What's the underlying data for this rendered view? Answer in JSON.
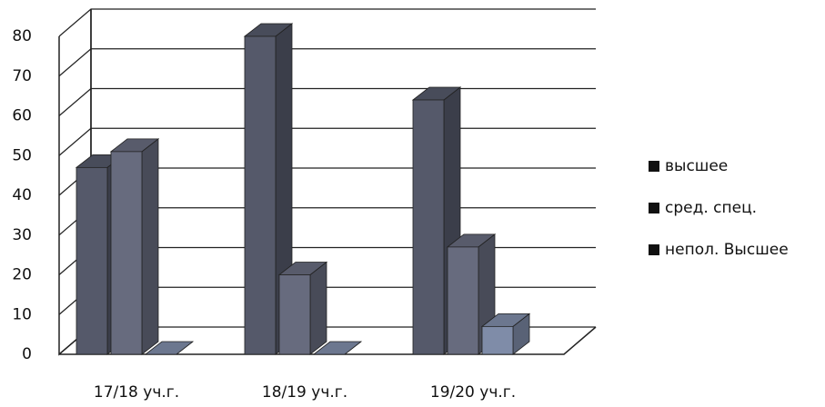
{
  "chart_data": {
    "type": "bar3d",
    "categories": [
      "17/18 уч.г.",
      "18/19 уч.г.",
      "19/20 уч.г."
    ],
    "series": [
      {
        "name": "высшее",
        "color": "#55596a",
        "values": [
          47,
          80,
          64
        ]
      },
      {
        "name": "сред. спец.",
        "color": "#676b7e",
        "values": [
          51,
          20,
          27
        ]
      },
      {
        "name": "непол. Высшее",
        "color": "#7f8ca8",
        "values": [
          0,
          0,
          7
        ]
      }
    ],
    "ylim": [
      0,
      80
    ],
    "yticks": [
      0,
      10,
      20,
      30,
      40,
      50,
      60,
      70,
      80
    ],
    "grid": true,
    "legend": "right"
  }
}
